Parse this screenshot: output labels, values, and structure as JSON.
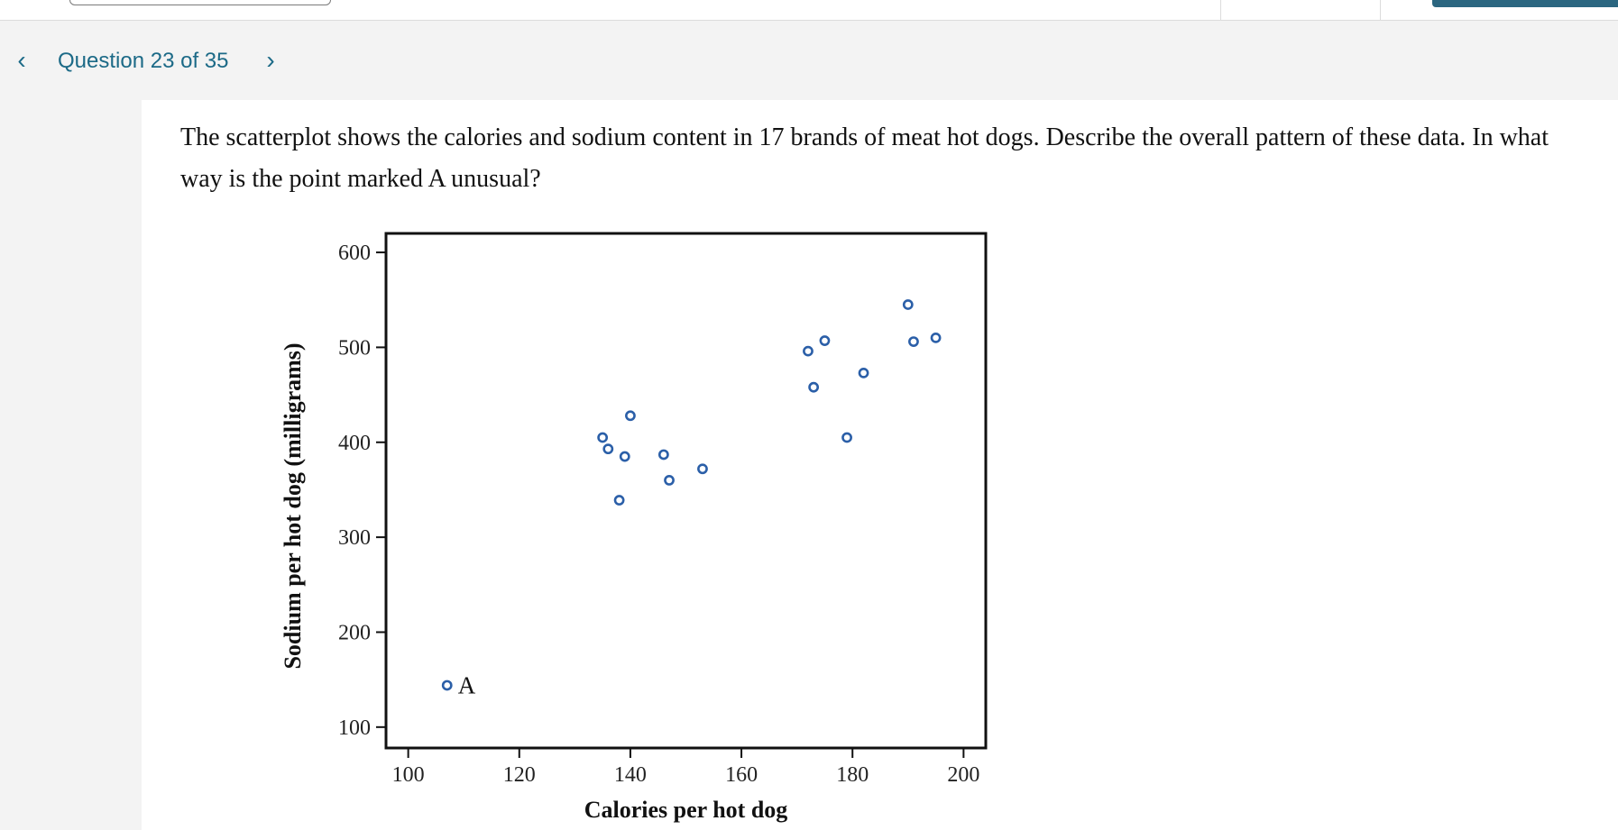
{
  "navigation": {
    "prev_glyph": "‹",
    "title": "Question 23 of 35",
    "next_glyph": "›"
  },
  "question": {
    "text": "The scatterplot shows the calories and sodium content in 17 brands of meat hot dogs. Describe the overall pattern of these data. In what way is the point marked A unusual?"
  },
  "colors": {
    "nav_link": "#1c6a87",
    "point": "#2b5fa8",
    "top_accent": "#2b6680"
  },
  "chart_data": {
    "type": "scatter",
    "title": "",
    "xlabel": "Calories per hot dog",
    "ylabel": "Sodium per hot dog (milligrams)",
    "xlim": [
      96,
      204
    ],
    "ylim": [
      78,
      620
    ],
    "xticks": [
      100,
      120,
      140,
      160,
      180,
      200
    ],
    "yticks": [
      100,
      200,
      300,
      400,
      500,
      600
    ],
    "grid": false,
    "marker": "open-circle",
    "annotations": [
      {
        "label": "A",
        "x": 107,
        "y": 144
      }
    ],
    "points": [
      {
        "x": 107,
        "y": 144
      },
      {
        "x": 135,
        "y": 405
      },
      {
        "x": 136,
        "y": 393
      },
      {
        "x": 138,
        "y": 339
      },
      {
        "x": 139,
        "y": 385
      },
      {
        "x": 140,
        "y": 428
      },
      {
        "x": 146,
        "y": 387
      },
      {
        "x": 147,
        "y": 360
      },
      {
        "x": 153,
        "y": 372
      },
      {
        "x": 172,
        "y": 496
      },
      {
        "x": 173,
        "y": 458
      },
      {
        "x": 175,
        "y": 507
      },
      {
        "x": 179,
        "y": 405
      },
      {
        "x": 182,
        "y": 473
      },
      {
        "x": 190,
        "y": 545
      },
      {
        "x": 191,
        "y": 506
      },
      {
        "x": 195,
        "y": 510
      }
    ]
  }
}
